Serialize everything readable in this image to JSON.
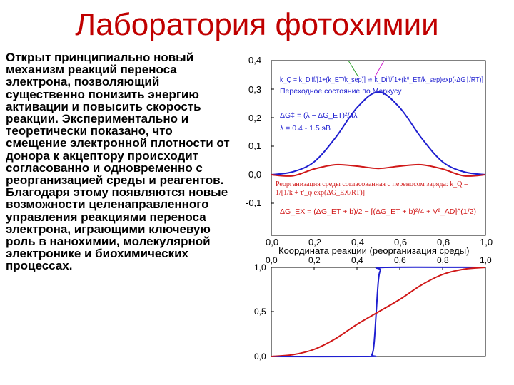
{
  "slide": {
    "title": "Лаборатория фотохимии",
    "paragraph_1": "Открыт принципиально новый механизм реакций переноса электрона, позволяющий существенно понизить энергию активации и повысить скорость реакции. Экспериментально и теоретически показано, что смещение электронной плотности от донора к акцептору происходит согласованно и одновременно с реорганизацией среды и реагентов.",
    "paragraph_2": "Благодаря этому появляются новые возможности целенаправленного управления реакциями переноса электрона, играющими ключевую роль в нанохимии, молекулярной электронике и биохимических процессах."
  },
  "colors": {
    "title": "#c00000",
    "blue": "#1f1fd0",
    "red": "#d01818",
    "axis": "#000000"
  },
  "chart_data": [
    {
      "type": "line",
      "xlabel": "Координата реакции (реорганизация среды)",
      "ylabel": "",
      "xlim": [
        0,
        1.0
      ],
      "ylim": [
        -0.15,
        0.4
      ],
      "x_ticks": [
        "0,0",
        "0,2",
        "0,4",
        "0,6",
        "0,8",
        "1,0"
      ],
      "y_ticks": [
        "0,4",
        "0,3",
        "0,2",
        "0,1",
        "0,0",
        "-0,1"
      ],
      "annotations_blue": [
        "k_Q = k_Diff/[1+(k_ET/k_sep)] ≅ k_Diff/[1+(k⁰_ET/k_sep)exp(-ΔG‡/RT)]",
        "Переходное состояние по Маркусу",
        "ΔG‡ = (λ − ΔG_ET)²/4λ",
        "λ = 0.4 - 1.5 эВ"
      ],
      "annotations_red": [
        "Реорганизация среды согласованная с переносом заряда:  k_Q = 1/[1/k + τ'_φ exp(ΔG_EX/RT)]",
        "ΔG_EX = (ΔG_ET + b)/2 − [(ΔG_ET + b)²/4 + V²_AD]^(1/2)"
      ],
      "series": [
        {
          "color": "blue",
          "points": [
            [
              0.0,
              0.0
            ],
            [
              0.1,
              0.01
            ],
            [
              0.2,
              0.045
            ],
            [
              0.3,
              0.13
            ],
            [
              0.4,
              0.235
            ],
            [
              0.5,
              0.29
            ],
            [
              0.6,
              0.235
            ],
            [
              0.7,
              0.13
            ],
            [
              0.8,
              0.045
            ],
            [
              0.9,
              0.01
            ],
            [
              1.0,
              0.0
            ]
          ]
        },
        {
          "color": "red",
          "points": [
            [
              0.0,
              0.0
            ],
            [
              0.1,
              -0.004
            ],
            [
              0.2,
              0.02
            ],
            [
              0.3,
              0.035
            ],
            [
              0.4,
              0.03
            ],
            [
              0.5,
              0.022
            ],
            [
              0.6,
              0.03
            ],
            [
              0.7,
              0.035
            ],
            [
              0.8,
              0.02
            ],
            [
              0.9,
              -0.004
            ],
            [
              1.0,
              0.0
            ]
          ]
        }
      ]
    },
    {
      "type": "line",
      "xlim": [
        0,
        1.0
      ],
      "ylim": [
        0,
        1.0
      ],
      "x_ticks": [
        "0,0",
        "0,2",
        "0,4",
        "0,6",
        "0,8",
        "1,0"
      ],
      "y_ticks": [
        "1,0",
        "0,5",
        "0,0"
      ],
      "series": [
        {
          "color": "blue",
          "points": [
            [
              0.0,
              0.0
            ],
            [
              0.45,
              0.0
            ],
            [
              0.47,
              0.02
            ],
            [
              0.48,
              0.15
            ],
            [
              0.49,
              0.5
            ],
            [
              0.5,
              0.85
            ],
            [
              0.51,
              0.97
            ],
            [
              0.53,
              1.0
            ],
            [
              1.0,
              1.0
            ]
          ]
        },
        {
          "color": "red",
          "points": [
            [
              0.0,
              0.0
            ],
            [
              0.1,
              0.02
            ],
            [
              0.2,
              0.08
            ],
            [
              0.3,
              0.2
            ],
            [
              0.4,
              0.36
            ],
            [
              0.5,
              0.5
            ],
            [
              0.6,
              0.64
            ],
            [
              0.7,
              0.8
            ],
            [
              0.8,
              0.92
            ],
            [
              0.9,
              0.98
            ],
            [
              1.0,
              1.0
            ]
          ]
        }
      ]
    }
  ]
}
